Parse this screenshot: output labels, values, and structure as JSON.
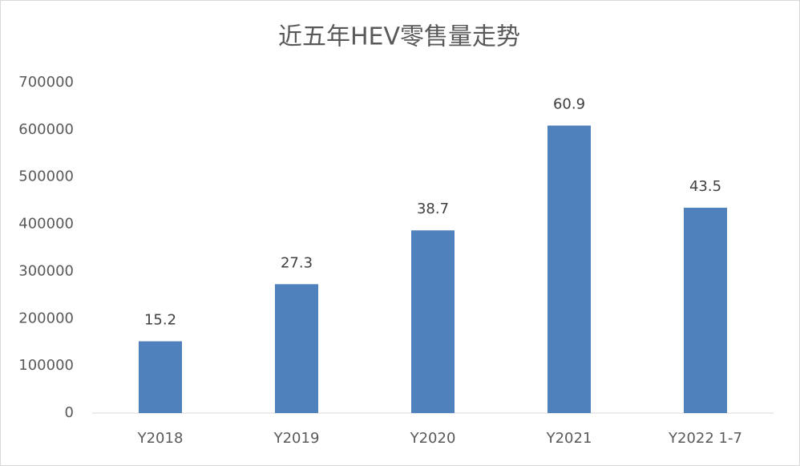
{
  "chart_data": {
    "type": "bar",
    "title": "近五年HEV零售量走势",
    "categories": [
      "Y2018",
      "Y2019",
      "Y2020",
      "Y2021",
      "Y2022 1-7"
    ],
    "values": [
      152000,
      273000,
      387000,
      609000,
      435000
    ],
    "value_labels": [
      "15.2",
      "27.3",
      "38.7",
      "60.9",
      "43.5"
    ],
    "color": "#4f81bd",
    "ylim": [
      0,
      700000
    ],
    "yticks": [
      0,
      100000,
      200000,
      300000,
      400000,
      500000,
      600000,
      700000
    ],
    "grid": false
  }
}
